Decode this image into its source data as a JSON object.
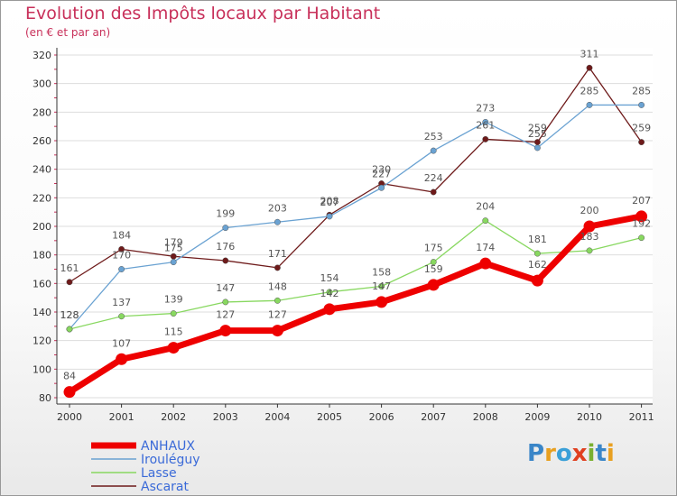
{
  "title": "Evolution des Impôts locaux par Habitant",
  "subtitle": "(en € et par an)",
  "logo": {
    "text": "Proxiti",
    "colors": [
      "#3a86c8",
      "#e8a020",
      "#3aa0d8",
      "#e04020",
      "#7ab030",
      "#3a86c8",
      "#e8a020"
    ]
  },
  "chart_data": {
    "type": "line",
    "title": "Evolution des Impôts locaux par Habitant",
    "subtitle": "(en € et par an)",
    "xlabel": "",
    "ylabel": "",
    "ylim": [
      80,
      320
    ],
    "yticks": [
      80,
      100,
      120,
      140,
      160,
      180,
      200,
      220,
      240,
      260,
      280,
      300,
      320
    ],
    "x": [
      "2000",
      "2001",
      "2002",
      "2003",
      "2004",
      "2005",
      "2006",
      "2007",
      "2008",
      "2009",
      "2010",
      "2011"
    ],
    "legend_position": "bottom-left",
    "series": [
      {
        "name": "ANHAUX",
        "color": "#ee0000",
        "values": [
          84,
          107,
          115,
          127,
          127,
          142,
          147,
          159,
          174,
          162,
          200,
          207
        ]
      },
      {
        "name": "Irouléguy",
        "color": "#6aa2d2",
        "values": [
          128,
          170,
          175,
          199,
          203,
          207,
          227,
          253,
          273,
          255,
          285,
          285
        ]
      },
      {
        "name": "Lasse",
        "color": "#88d860",
        "values": [
          128,
          137,
          139,
          147,
          148,
          154,
          158,
          175,
          204,
          181,
          183,
          192
        ]
      },
      {
        "name": "Ascarat",
        "color": "#6e1a1a",
        "values": [
          161,
          184,
          179,
          176,
          171,
          208,
          230,
          224,
          261,
          259,
          311,
          259
        ]
      }
    ]
  }
}
